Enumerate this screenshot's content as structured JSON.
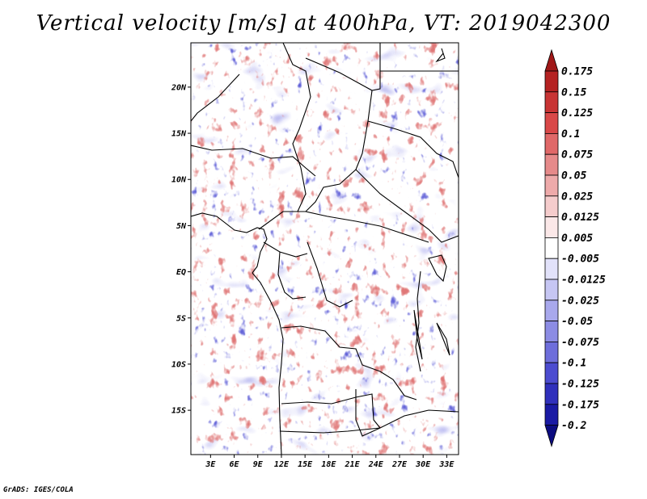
{
  "title": "Vertical velocity [m/s] at 400hPa, VT: 2019042300",
  "footer": "GrADS: IGES/COLA",
  "map": {
    "lat_labels": [
      "20N",
      "15N",
      "10N",
      "5N",
      "EQ",
      "5S",
      "10S",
      "15S"
    ],
    "lat_values": [
      20,
      15,
      10,
      5,
      0,
      -5,
      -10,
      -15
    ],
    "lon_labels": [
      "3E",
      "6E",
      "9E",
      "12E",
      "15E",
      "18E",
      "21E",
      "24E",
      "27E",
      "30E",
      "33E"
    ],
    "lon_values": [
      3,
      6,
      9,
      12,
      15,
      18,
      21,
      24,
      27,
      30,
      33
    ],
    "lon_range": [
      0.5,
      34.5
    ],
    "lat_range": [
      -19.8,
      24.8
    ]
  },
  "colorbar": {
    "labels": [
      "0.175",
      "0.15",
      "0.125",
      "0.1",
      "0.075",
      "0.05",
      "0.025",
      "0.0125",
      "0.005",
      "-0.005",
      "-0.0125",
      "-0.025",
      "-0.05",
      "-0.075",
      "-0.1",
      "-0.125",
      "-0.175",
      "-0.2"
    ],
    "colors": [
      "#a01818",
      "#b52222",
      "#c83434",
      "#d94848",
      "#e06868",
      "#e68a8a",
      "#eeaaaa",
      "#f5cccc",
      "#fbe8e8",
      "#ffffff",
      "#e2e2fa",
      "#c6c6f3",
      "#a8a8ec",
      "#8c8ce4",
      "#6e6edb",
      "#4c4cd0",
      "#3030bc",
      "#1a1aa4",
      "#0c0c80"
    ]
  }
}
